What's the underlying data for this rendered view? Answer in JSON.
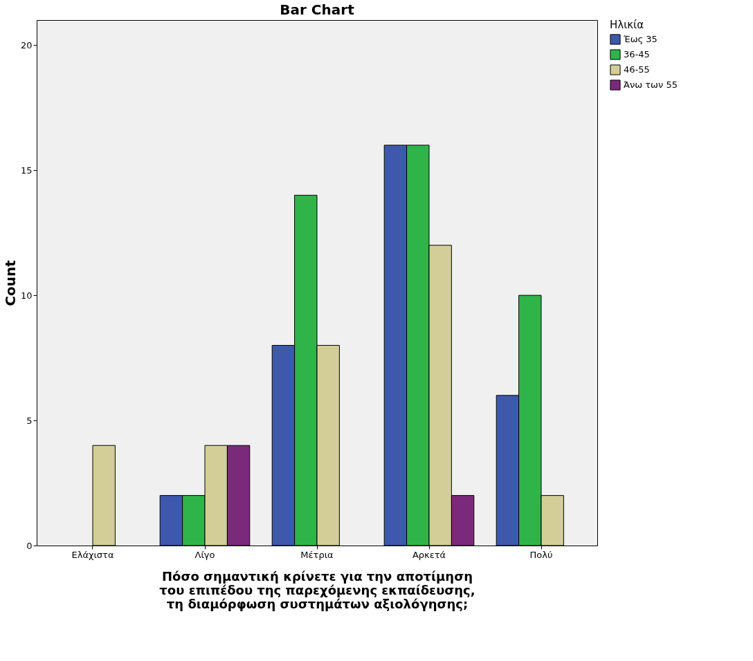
{
  "chart_data": {
    "type": "bar",
    "title": "Bar Chart",
    "xlabel": "Πόσο σημαντική κρίνετε για την αποτίμηση\nτου επιπέδου της παρεχόμενης εκπαίδευσης,\nτη διαμόρφωση συστημάτων αξιολόγησης;",
    "ylabel": "Count",
    "legend_title": "Ηλικία",
    "categories": [
      "Ελάχιστα",
      "Λίγο",
      "Μέτρια",
      "Αρκετά",
      "Πολύ"
    ],
    "series": [
      {
        "name": "Έως 35",
        "color": "#3e58ac",
        "values": [
          null,
          2,
          8,
          16,
          6
        ]
      },
      {
        "name": "36-45",
        "color": "#2fb44a",
        "values": [
          null,
          2,
          14,
          16,
          10
        ]
      },
      {
        "name": "46-55",
        "color": "#d3ce97",
        "values": [
          4,
          4,
          8,
          12,
          2
        ]
      },
      {
        "name": "Άνω των 55",
        "color": "#7b2a7b",
        "values": [
          null,
          4,
          null,
          2,
          null
        ]
      }
    ],
    "ylim": [
      0,
      21
    ],
    "yticks": [
      0,
      5,
      10,
      15,
      20
    ],
    "grid": false,
    "legend": "top right"
  }
}
